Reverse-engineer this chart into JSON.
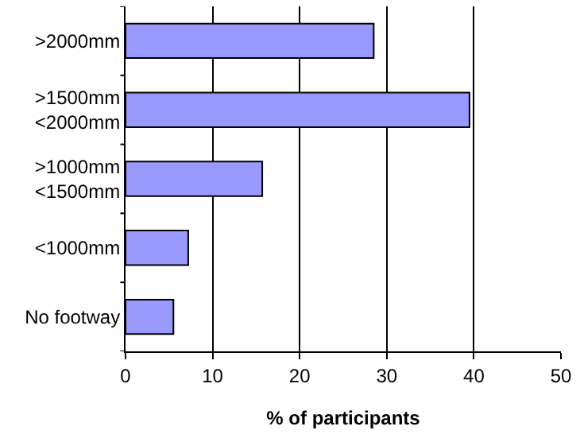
{
  "chart_data": {
    "type": "bar",
    "orientation": "horizontal",
    "xlabel": "% of participants",
    "categories": [
      ">2000mm",
      ">1500mm\n<2000mm",
      ">1000mm\n<1500mm",
      "<1000mm",
      "No footway"
    ],
    "values": [
      28.5,
      39.5,
      15.7,
      7.2,
      5.5
    ],
    "color": "#9999ff",
    "xlim": [
      0,
      50
    ],
    "xticks": [
      0,
      10,
      20,
      30,
      40,
      50
    ],
    "grid": "x"
  }
}
